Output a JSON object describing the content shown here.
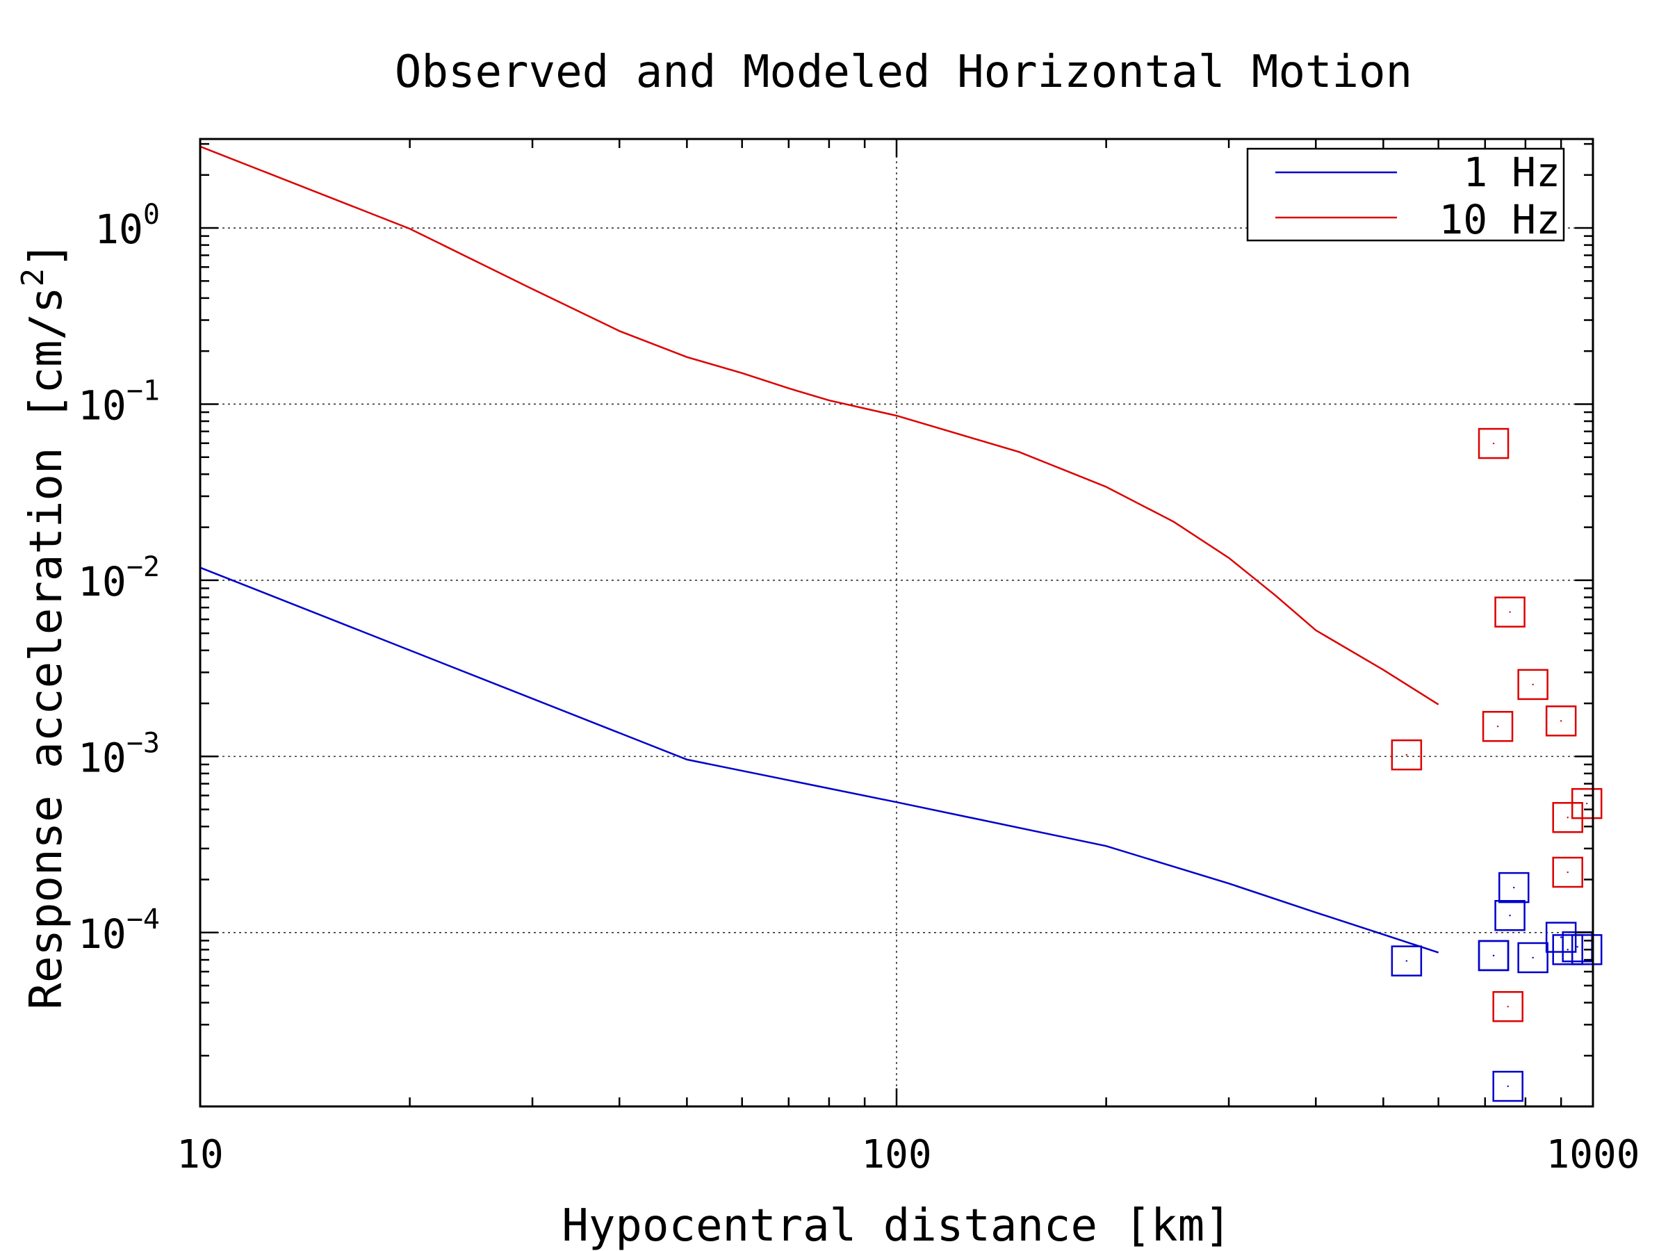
{
  "chart_data": {
    "type": "line",
    "title": "Observed and Modeled Horizontal Motion",
    "xlabel": "Hypocentral distance [km]",
    "ylabel": "Response acceleration [cm/s",
    "ylabel_sup": "2",
    "ylabel_close": "]",
    "x_scale": "log",
    "y_scale": "log",
    "xlim": [
      10,
      1000
    ],
    "ylim": [
      1.03e-05,
      3.2
    ],
    "x_ticks": [
      {
        "value": 10,
        "label": "10"
      },
      {
        "value": 100,
        "label": "100"
      },
      {
        "value": 1000,
        "label": "1000"
      }
    ],
    "y_ticks": [
      {
        "value": 1,
        "base": "10",
        "exp": "0"
      },
      {
        "value": 0.1,
        "base": "10",
        "exp": "−1"
      },
      {
        "value": 0.01,
        "base": "10",
        "exp": "−2"
      },
      {
        "value": 0.001,
        "base": "10",
        "exp": "−3"
      },
      {
        "value": 0.0001,
        "base": "10",
        "exp": "−4"
      }
    ],
    "grid": true,
    "legend_position": "top-right",
    "series": [
      {
        "name": "1 Hz",
        "color": "#0000cc",
        "x": [
          10,
          50,
          100,
          200,
          300,
          400,
          500,
          600
        ],
        "y": [
          0.0118,
          0.00096,
          0.00055,
          0.00031,
          0.00019,
          0.00013,
          9.75e-05,
          7.7e-05
        ]
      },
      {
        "name": "10 Hz",
        "color": "#dd0000",
        "x": [
          10,
          20,
          30,
          40,
          50,
          60,
          70,
          80,
          100,
          150,
          200,
          250,
          300,
          350,
          400,
          500,
          600
        ],
        "y": [
          2.9,
          0.99,
          0.45,
          0.26,
          0.185,
          0.15,
          0.123,
          0.105,
          0.086,
          0.0535,
          0.0339,
          0.0215,
          0.0134,
          0.0082,
          0.0052,
          0.0031,
          0.00197
        ]
      }
    ],
    "observed": [
      {
        "series": "10 Hz",
        "color": "#dd0000",
        "x": [
          540,
          720,
          760,
          820,
          900,
          730,
          980,
          920,
          920,
          755
        ],
        "y": [
          0.00102,
          0.0598,
          0.0066,
          0.00256,
          0.00159,
          0.00148,
          0.00054,
          0.00045,
          0.00022,
          3.8e-05
        ]
      },
      {
        "series": "1 Hz",
        "color": "#0000cc",
        "x": [
          540,
          720,
          770,
          760,
          720,
          820,
          900,
          920,
          950,
          980,
          755
        ],
        "y": [
          6.9e-05,
          7.4e-05,
          0.00018,
          0.000125,
          7.4e-05,
          7.2e-05,
          9.4e-05,
          8e-05,
          8.3e-05,
          8e-05,
          1.34e-05
        ]
      }
    ]
  }
}
